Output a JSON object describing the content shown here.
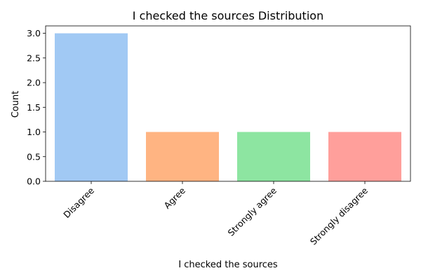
{
  "chart_data": {
    "type": "bar",
    "title": "I checked the sources Distribution",
    "xlabel": "I checked the sources",
    "ylabel": "Count",
    "categories": [
      "Disagree",
      "Agree",
      "Strongly agree",
      "Strongly disagree"
    ],
    "values": [
      3,
      1,
      1,
      1
    ],
    "colors": [
      "#a1c9f4",
      "#ffb482",
      "#8de5a1",
      "#ff9f9b"
    ],
    "ylim": [
      0,
      3.15
    ],
    "yticks": [
      "0.0",
      "0.5",
      "1.0",
      "1.5",
      "2.0",
      "2.5",
      "3.0"
    ],
    "grid": false,
    "legend": "none"
  }
}
